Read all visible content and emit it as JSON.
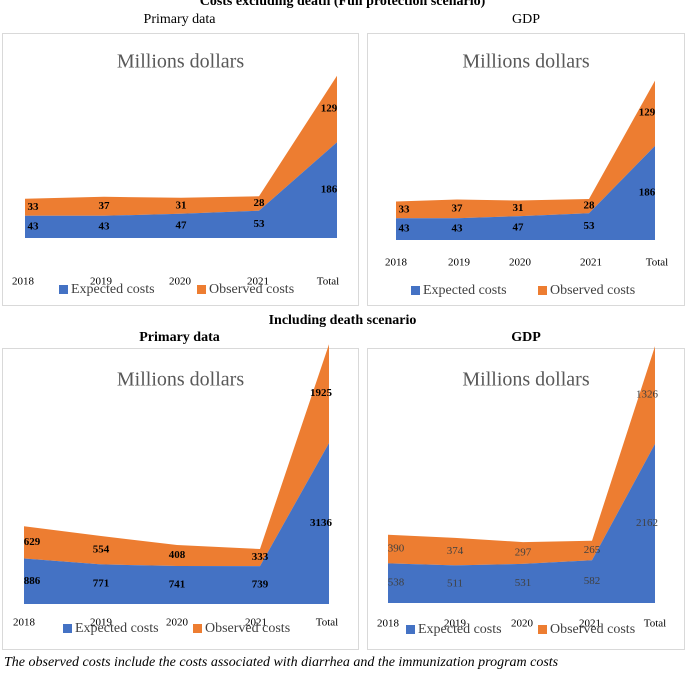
{
  "sections": {
    "top_title": "Costs excluding death (Full protection scenario)",
    "bottom_title": "Including death scenario"
  },
  "footnote": "The observed costs include the costs associated with diarrhea and the immunization program costs",
  "colors": {
    "expected": "#4472c4",
    "observed": "#ed7d31"
  },
  "chart_data": [
    {
      "type": "area",
      "stacked": true,
      "panel_label": "Primary data",
      "title": "Millions dollars",
      "categories": [
        "2018",
        "2019",
        "2020",
        "2021",
        "Total"
      ],
      "series": [
        {
          "name": "Expected costs",
          "values": [
            43,
            43,
            47,
            53,
            186
          ]
        },
        {
          "name": "Observed costs",
          "values": [
            33,
            37,
            31,
            28,
            129
          ]
        }
      ],
      "ylim": [
        0,
        330
      ]
    },
    {
      "type": "area",
      "stacked": true,
      "panel_label": "GDP",
      "title": "Millions dollars",
      "categories": [
        "2018",
        "2019",
        "2020",
        "2021",
        "Total"
      ],
      "series": [
        {
          "name": "Expected costs",
          "values": [
            43,
            43,
            47,
            53,
            186
          ]
        },
        {
          "name": "Observed costs",
          "values": [
            33,
            37,
            31,
            28,
            129
          ]
        }
      ],
      "ylim": [
        0,
        330
      ]
    },
    {
      "type": "area",
      "stacked": true,
      "panel_label": "Primary data",
      "title": "Millions dollars",
      "categories": [
        "2018",
        "2019",
        "2020",
        "2021",
        "Total"
      ],
      "series": [
        {
          "name": "Expected costs",
          "values": [
            886,
            771,
            741,
            739,
            3136
          ]
        },
        {
          "name": "Observed costs",
          "values": [
            629,
            554,
            408,
            333,
            1925
          ]
        }
      ],
      "ylim": [
        0,
        5300
      ]
    },
    {
      "type": "area",
      "stacked": true,
      "panel_label": "GDP",
      "title": "Millions dollars",
      "categories": [
        "2018",
        "2019",
        "2020",
        "2021",
        "Total"
      ],
      "series": [
        {
          "name": "Expected costs",
          "values": [
            538,
            511,
            531,
            582,
            2162
          ]
        },
        {
          "name": "Observed costs",
          "values": [
            390,
            374,
            297,
            265,
            1326
          ]
        }
      ],
      "ylim": [
        0,
        3600
      ]
    }
  ]
}
